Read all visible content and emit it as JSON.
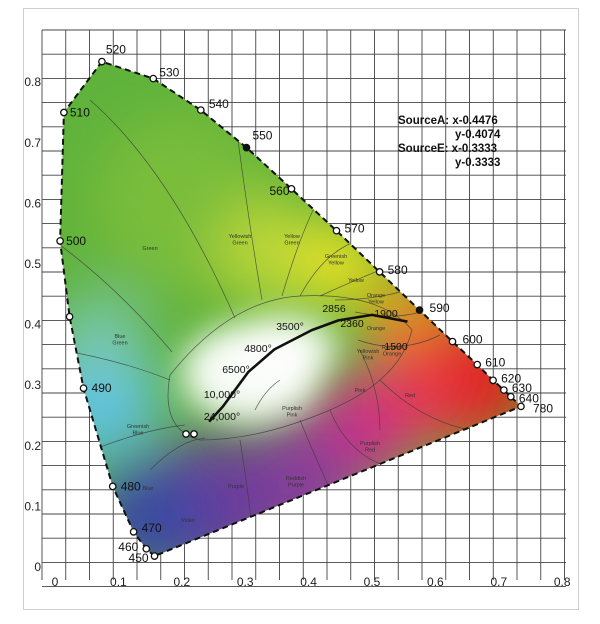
{
  "chart_data": {
    "type": "scatter",
    "title": "",
    "xlabel": "",
    "ylabel": "",
    "xlim": [
      0,
      0.8
    ],
    "ylim": [
      0,
      0.85
    ],
    "grid": true,
    "x_ticks": [
      "0",
      "0.1",
      "0.2",
      "0.3",
      "0.4",
      "0.5",
      "0.6",
      "0.7",
      "0.8"
    ],
    "y_ticks": [
      "0",
      "0.1",
      "0.2",
      "0.3",
      "0.4",
      "0.5",
      "0.6",
      "0.7",
      "0.8"
    ],
    "spectral_locus": [
      {
        "label": "450",
        "x": 0.157,
        "y": 0.018
      },
      {
        "label": "460",
        "x": 0.144,
        "y": 0.03
      },
      {
        "label": "470",
        "x": 0.124,
        "y": 0.058
      },
      {
        "label": "480",
        "x": 0.091,
        "y": 0.133
      },
      {
        "label": "490",
        "x": 0.045,
        "y": 0.295
      },
      {
        "label": "",
        "x": 0.023,
        "y": 0.413
      },
      {
        "label": "500",
        "x": 0.008,
        "y": 0.538
      },
      {
        "label": "510",
        "x": 0.014,
        "y": 0.75
      },
      {
        "label": "520",
        "x": 0.074,
        "y": 0.834
      },
      {
        "label": "530",
        "x": 0.155,
        "y": 0.806
      },
      {
        "label": "540",
        "x": 0.23,
        "y": 0.754
      },
      {
        "label": "550",
        "x": 0.302,
        "y": 0.692
      },
      {
        "label": "560",
        "x": 0.373,
        "y": 0.624
      },
      {
        "label": "570",
        "x": 0.444,
        "y": 0.555
      },
      {
        "label": "580",
        "x": 0.512,
        "y": 0.487
      },
      {
        "label": "590",
        "x": 0.575,
        "y": 0.424
      },
      {
        "label": "600",
        "x": 0.627,
        "y": 0.372
      },
      {
        "label": "610",
        "x": 0.666,
        "y": 0.334
      },
      {
        "label": "620",
        "x": 0.691,
        "y": 0.308
      },
      {
        "label": "630",
        "x": 0.708,
        "y": 0.292
      },
      {
        "label": "640",
        "x": 0.719,
        "y": 0.281
      },
      {
        "label": "780",
        "x": 0.735,
        "y": 0.265
      }
    ],
    "planckian_locus": [
      {
        "x": 0.243,
        "y": 0.24
      },
      {
        "x": 0.265,
        "y": 0.265
      },
      {
        "x": 0.281,
        "y": 0.288
      },
      {
        "x": 0.305,
        "y": 0.322
      },
      {
        "x": 0.346,
        "y": 0.359
      },
      {
        "x": 0.405,
        "y": 0.391
      },
      {
        "x": 0.447,
        "y": 0.407
      },
      {
        "x": 0.5,
        "y": 0.416
      },
      {
        "x": 0.556,
        "y": 0.405
      }
    ],
    "temperature_labels": [
      "24,000°",
      "10,000°",
      "6500°",
      "4800°",
      "3500°",
      "2856",
      "2360",
      "1900",
      "1500"
    ],
    "sources": [
      {
        "name": "SourceA",
        "text_x": "x-0.4476",
        "text_y": "y-0.4074",
        "x": 0.4476,
        "y": 0.4074
      },
      {
        "name": "SourceE",
        "text_x": "x-0.3333",
        "text_y": "y-0.3333",
        "x": 0.3333,
        "y": 0.3333
      }
    ],
    "regions": [
      "Green",
      "Yellowish Green",
      "Yellow Green",
      "Greenish Yellow",
      "Yellow",
      "Orange Yellow",
      "Orange",
      "Reddish Orange",
      "Blue Green",
      "Greenish Blue",
      "Yellowish Pink",
      "Pink",
      "Red",
      "Purplish Pink",
      "Purplish Red",
      "Blue",
      "Purple",
      "Reddish Purple",
      "Violet"
    ]
  },
  "colors": {
    "green": "#5fb23a",
    "yellow": "#f2e41c",
    "red": "#e2231f",
    "blue": "#3a48a3",
    "cyan": "#5ec3e6",
    "magenta": "#cf2b8a",
    "purple": "#6c3a9c"
  }
}
